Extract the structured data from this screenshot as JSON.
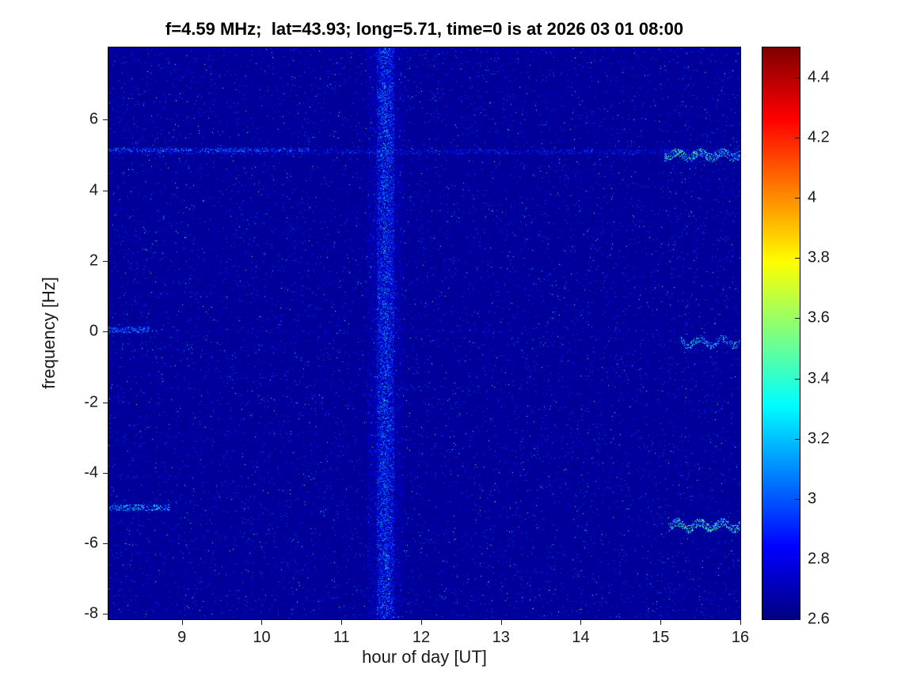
{
  "chart_data": {
    "type": "heatmap",
    "title": "f=4.59 MHz;  lat=43.93; long=5.71, time=0 is at 2026 03 01 08:00",
    "xlabel": "hour of day [UT]",
    "ylabel": "frequency [Hz]",
    "x_range": [
      8.08,
      16.0
    ],
    "y_range": [
      -8.15,
      8.05
    ],
    "x_ticks": [
      9,
      10,
      11,
      12,
      13,
      14,
      15,
      16
    ],
    "y_ticks": [
      -8,
      -6,
      -4,
      -2,
      0,
      2,
      4,
      6
    ],
    "colormap": "jet",
    "grid": false,
    "legend": "none",
    "colorbar": {
      "min": 2.6,
      "max": 4.5,
      "ticks": [
        2.6,
        2.8,
        3.0,
        3.2,
        3.4,
        3.6,
        3.8,
        4.0,
        4.2,
        4.4
      ],
      "tick_labels": [
        "2.6",
        "2.8",
        "3",
        "3.2",
        "3.4",
        "3.6",
        "3.8",
        "4",
        "4.2",
        "4.4"
      ],
      "position": "right"
    },
    "background_value": 2.62,
    "noise": {
      "base_jitter": 0.06,
      "speckle_prob": 0.03,
      "speckle_amp": 0.42,
      "bright_prob": 0.002
    },
    "features": [
      {
        "kind": "vband",
        "x": 11.55,
        "halfwidth": 0.11,
        "amp": 0.55,
        "density": 0.5
      },
      {
        "kind": "vband",
        "x": 11.55,
        "halfwidth": 0.22,
        "amp": 0.28,
        "density": 0.25
      },
      {
        "kind": "hline",
        "y": 5.1,
        "x0": 8.08,
        "x1": 16.0,
        "halfwidth": 0.07,
        "amp": 0.35,
        "density": 0.3,
        "wobble": 0
      },
      {
        "kind": "hline",
        "y": 5.15,
        "x0": 8.08,
        "x1": 10.6,
        "halfwidth": 0.06,
        "amp": 0.5,
        "density": 0.4,
        "wobble": 0
      },
      {
        "kind": "hline",
        "y": 5.0,
        "x0": 15.05,
        "x1": 16.0,
        "halfwidth": 0.12,
        "amp": 1.0,
        "density": 0.5,
        "wobble": 0.08
      },
      {
        "kind": "hline",
        "y": 0.05,
        "x0": 8.08,
        "x1": 8.6,
        "halfwidth": 0.08,
        "amp": 0.6,
        "density": 0.5,
        "wobble": 0
      },
      {
        "kind": "hline",
        "y": 0.0,
        "x0": 8.08,
        "x1": 16.0,
        "halfwidth": 0.05,
        "amp": 0.22,
        "density": 0.12,
        "wobble": 0
      },
      {
        "kind": "hline",
        "y": -0.3,
        "x0": 15.25,
        "x1": 16.0,
        "halfwidth": 0.1,
        "amp": 0.85,
        "density": 0.45,
        "wobble": 0.1
      },
      {
        "kind": "hline",
        "y": -5.0,
        "x0": 8.08,
        "x1": 8.85,
        "halfwidth": 0.09,
        "amp": 0.8,
        "density": 0.45,
        "wobble": 0
      },
      {
        "kind": "hline",
        "y": -5.5,
        "x0": 15.1,
        "x1": 16.0,
        "halfwidth": 0.12,
        "amp": 1.0,
        "density": 0.5,
        "wobble": 0.1
      }
    ],
    "colors": {
      "figure_background": "#ffffff",
      "axis_color": "#1a1a1a",
      "title_color": "#000000",
      "heatmap_background": "#00008f"
    }
  }
}
